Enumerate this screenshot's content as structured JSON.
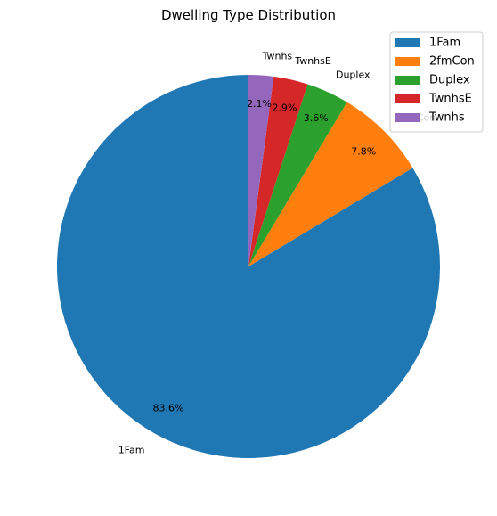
{
  "chart_data": {
    "type": "pie",
    "title": "Dwelling Type Distribution",
    "slices": [
      {
        "label": "1Fam",
        "value": 83.6,
        "pct_label": "83.6%",
        "color": "#1f77b4"
      },
      {
        "label": "2fmCon",
        "value": 7.8,
        "pct_label": "7.8%",
        "color": "#ff7f0e"
      },
      {
        "label": "Duplex",
        "value": 3.6,
        "pct_label": "3.6%",
        "color": "#2ca02c"
      },
      {
        "label": "TwnhsE",
        "value": 2.9,
        "pct_label": "2.9%",
        "color": "#d62728"
      },
      {
        "label": "Twnhs",
        "value": 2.1,
        "pct_label": "2.1%",
        "color": "#9467bd"
      }
    ],
    "start_angle_deg": 90,
    "direction": "counterclockwise",
    "legend": {
      "placement": "top-right",
      "entries": [
        "1Fam",
        "2fmCon",
        "Duplex",
        "TwnhsE",
        "Twnhs"
      ]
    }
  }
}
